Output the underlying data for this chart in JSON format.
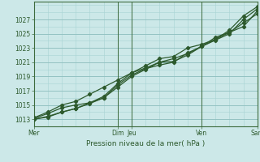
{
  "title": "",
  "xlabel": "Pression niveau de la mer( hPa )",
  "bg_color": "#cce8e8",
  "plot_bg_color": "#cce8e8",
  "grid_major_color": "#8fbfbf",
  "grid_minor_color": "#a8d4d4",
  "day_line_color": "#3d6b3d",
  "line_color": "#2d5a2d",
  "ylim": [
    1012.0,
    1029.5
  ],
  "yticks": [
    1013,
    1015,
    1017,
    1019,
    1021,
    1023,
    1025,
    1027
  ],
  "x_total": 8.0,
  "day_lines": [
    0.0,
    3.0,
    3.5,
    6.0,
    8.0
  ],
  "xtick_positions": [
    0.0,
    3.0,
    3.5,
    6.0,
    8.0
  ],
  "xtick_labels": [
    "Mer",
    "Dim",
    "Jeu",
    "Ven",
    "Sam"
  ],
  "lines": [
    {
      "x": [
        0.0,
        0.5,
        1.0,
        1.5,
        2.0,
        2.5,
        3.0,
        3.5,
        4.0,
        4.5,
        5.0,
        5.5,
        6.0,
        6.5,
        7.0,
        7.5,
        8.0
      ],
      "y": [
        1013.1,
        1013.8,
        1014.6,
        1015.0,
        1015.3,
        1016.2,
        1018.0,
        1019.5,
        1020.2,
        1021.0,
        1021.1,
        1022.0,
        1023.2,
        1024.5,
        1025.2,
        1026.0,
        1028.2
      ]
    },
    {
      "x": [
        0.0,
        0.5,
        1.0,
        1.5,
        2.0,
        2.5,
        3.0,
        3.5,
        4.0,
        4.5,
        5.0,
        5.5,
        6.0,
        6.5,
        7.0,
        7.5,
        8.0
      ],
      "y": [
        1013.0,
        1013.4,
        1014.0,
        1014.5,
        1015.3,
        1016.0,
        1017.8,
        1019.2,
        1020.1,
        1020.6,
        1021.0,
        1022.3,
        1023.2,
        1024.1,
        1025.0,
        1027.0,
        1028.5
      ]
    },
    {
      "x": [
        0.0,
        0.5,
        1.0,
        1.5,
        2.0,
        2.5,
        3.0,
        3.5,
        4.0,
        4.5,
        5.0,
        5.5,
        6.0,
        6.5,
        7.0,
        7.5,
        8.0
      ],
      "y": [
        1013.2,
        1014.0,
        1015.0,
        1015.5,
        1016.5,
        1017.5,
        1018.5,
        1019.5,
        1020.5,
        1021.5,
        1021.8,
        1023.0,
        1023.5,
        1024.2,
        1025.5,
        1027.5,
        1028.8
      ]
    },
    {
      "x": [
        0.0,
        0.5,
        1.0,
        1.5,
        2.0,
        2.5,
        3.0,
        3.5,
        4.0,
        4.5,
        5.0,
        5.5,
        6.0,
        6.5,
        7.0,
        7.5,
        8.0
      ],
      "y": [
        1013.0,
        1013.3,
        1014.0,
        1014.5,
        1015.2,
        1016.0,
        1017.5,
        1019.0,
        1020.0,
        1021.0,
        1021.5,
        1022.2,
        1023.2,
        1024.2,
        1025.2,
        1026.5,
        1027.8
      ]
    }
  ]
}
